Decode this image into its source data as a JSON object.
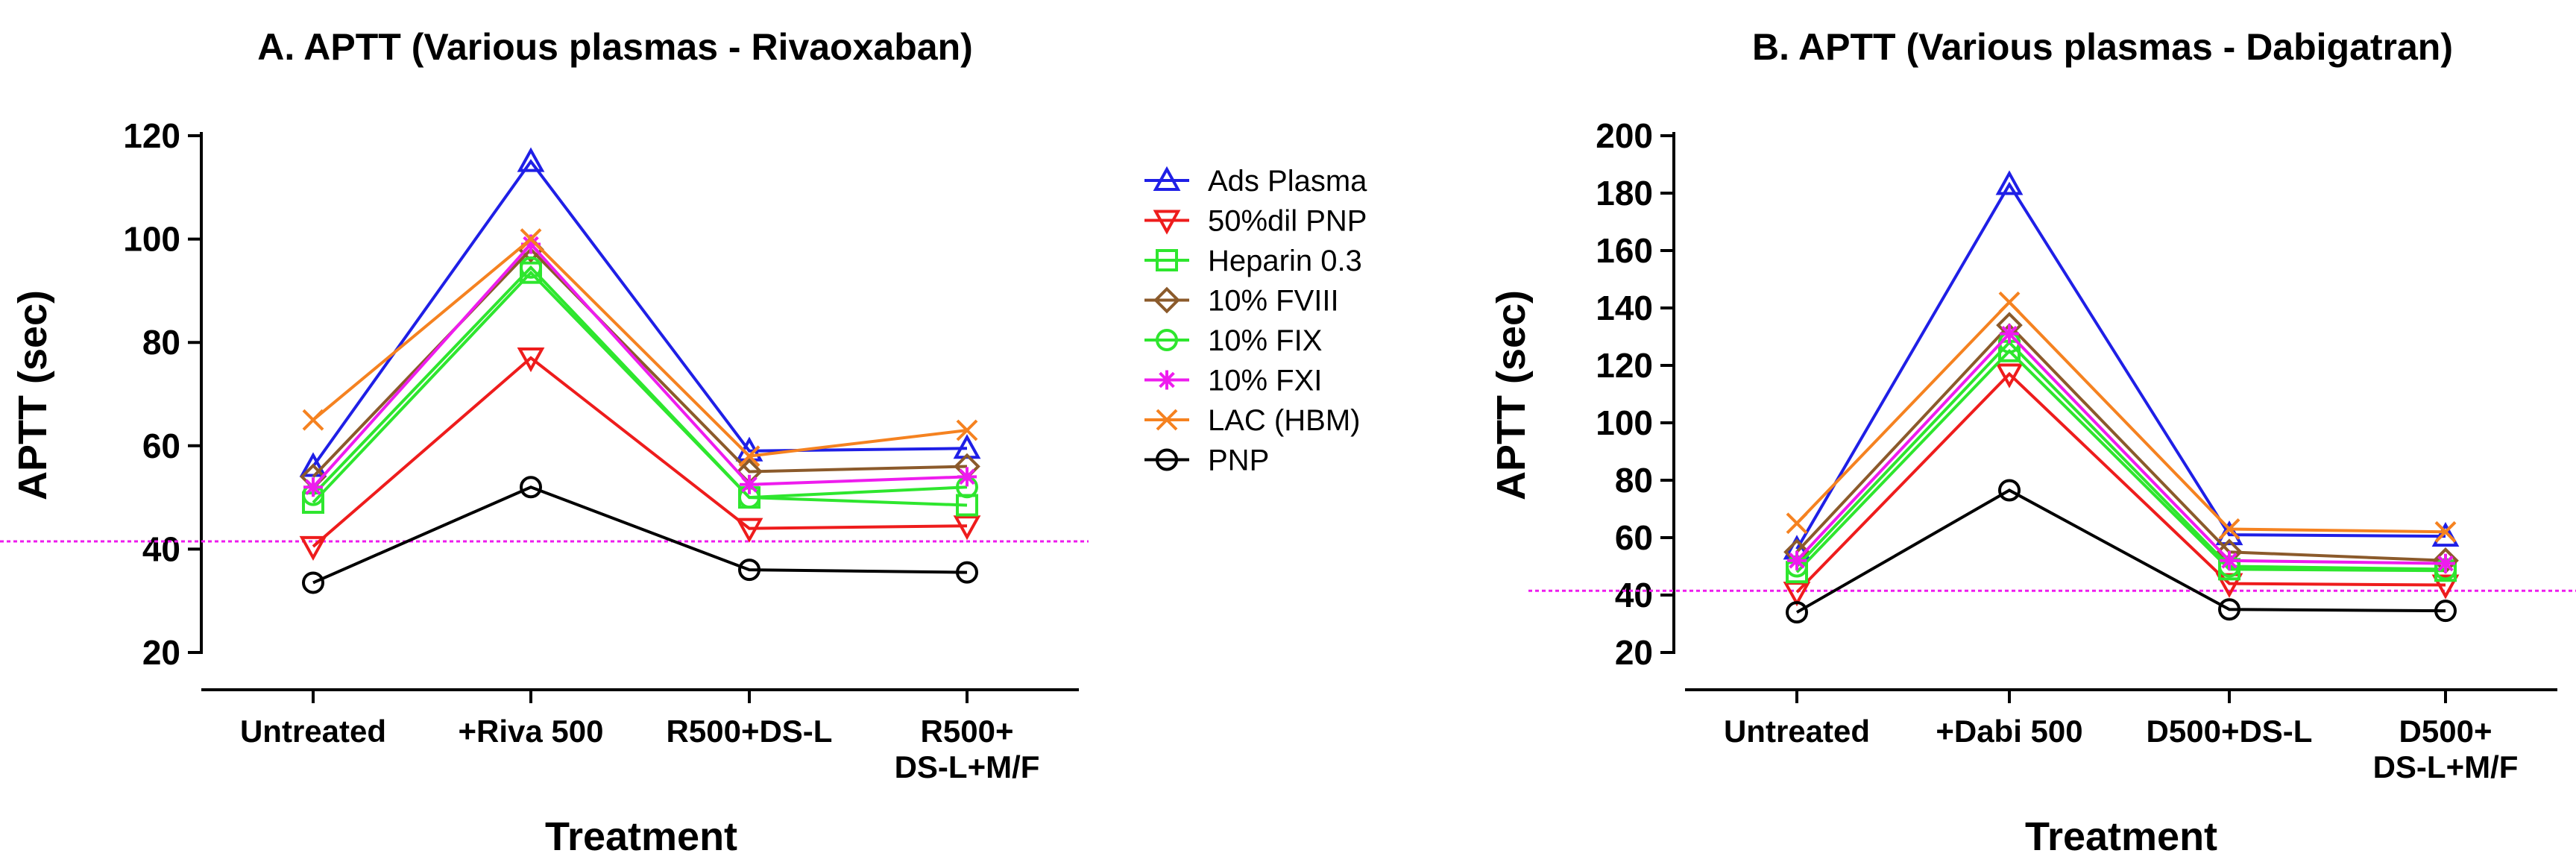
{
  "legend": [
    {
      "name": "Ads Plasma",
      "color": "#1f1fe6",
      "marker": "triangle-up"
    },
    {
      "name": "50%dil PNP",
      "color": "#ee1c1c",
      "marker": "triangle-down"
    },
    {
      "name": "Heparin 0.3",
      "color": "#2ee62e",
      "marker": "square"
    },
    {
      "name": "10% FVIII",
      "color": "#8b5a2b",
      "marker": "diamond"
    },
    {
      "name": "10% FIX",
      "color": "#2ee62e",
      "marker": "circle"
    },
    {
      "name": "10% FXI",
      "color": "#ee1cee",
      "marker": "asterisk"
    },
    {
      "name": "LAC (HBM)",
      "color": "#f58220",
      "marker": "x"
    },
    {
      "name": "PNP",
      "color": "#000000",
      "marker": "circle"
    }
  ],
  "chart_data": [
    {
      "type": "line",
      "title": "A. APTT (Various plasmas - Rivaoxaban)",
      "xlabel": "Treatment",
      "ylabel": "APTT (sec)",
      "categories": [
        [
          "Untreated"
        ],
        [
          "+Riva 500"
        ],
        [
          "R500+DS-L"
        ],
        [
          "R500+",
          "DS-L+M/F"
        ]
      ],
      "ylim": [
        20,
        120
      ],
      "yticks": [
        20,
        40,
        60,
        80,
        100,
        120
      ],
      "reference_line": 41.5,
      "series": [
        {
          "name": "Ads Plasma",
          "values": [
            56,
            115,
            59,
            59.5
          ]
        },
        {
          "name": "50%dil PNP",
          "values": [
            40.5,
            77,
            44,
            44.5
          ]
        },
        {
          "name": "Heparin 0.3",
          "values": [
            49,
            93.5,
            50,
            48.5
          ]
        },
        {
          "name": "10% FVIII",
          "values": [
            54,
            98,
            55,
            56
          ]
        },
        {
          "name": "10% FIX",
          "values": [
            50.5,
            94.5,
            50,
            52
          ]
        },
        {
          "name": "10% FXI",
          "values": [
            52,
            99,
            52.5,
            54
          ]
        },
        {
          "name": "LAC (HBM)",
          "values": [
            65,
            100,
            58,
            63
          ]
        },
        {
          "name": "PNP",
          "values": [
            33.5,
            52,
            36,
            35.5
          ]
        }
      ]
    },
    {
      "type": "line",
      "title": "B. APTT (Various plasmas - Dabigatran)",
      "xlabel": "Treatment",
      "ylabel": "APTT (sec)",
      "categories": [
        [
          "Untreated"
        ],
        [
          "+Dabi 500"
        ],
        [
          "D500+DS-L"
        ],
        [
          "D500+",
          "DS-L+M/F"
        ]
      ],
      "ylim": [
        20,
        200
      ],
      "yticks": [
        20,
        40,
        60,
        80,
        100,
        120,
        140,
        160,
        180,
        200
      ],
      "reference_line": 41.5,
      "series": [
        {
          "name": "Ads Plasma",
          "values": [
            56,
            183,
            61,
            60.5
          ]
        },
        {
          "name": "50%dil PNP",
          "values": [
            41,
            117,
            44,
            43.5
          ]
        },
        {
          "name": "Heparin 0.3",
          "values": [
            48,
            125,
            49,
            48.5
          ]
        },
        {
          "name": "10% FVIII",
          "values": [
            55,
            134,
            55,
            52
          ]
        },
        {
          "name": "10% FIX",
          "values": [
            50,
            128,
            50,
            49
          ]
        },
        {
          "name": "10% FXI",
          "values": [
            52,
            131,
            52,
            51
          ]
        },
        {
          "name": "LAC (HBM)",
          "values": [
            65,
            142,
            63,
            62
          ]
        },
        {
          "name": "PNP",
          "values": [
            34,
            76.5,
            35,
            34.5
          ]
        }
      ]
    }
  ]
}
